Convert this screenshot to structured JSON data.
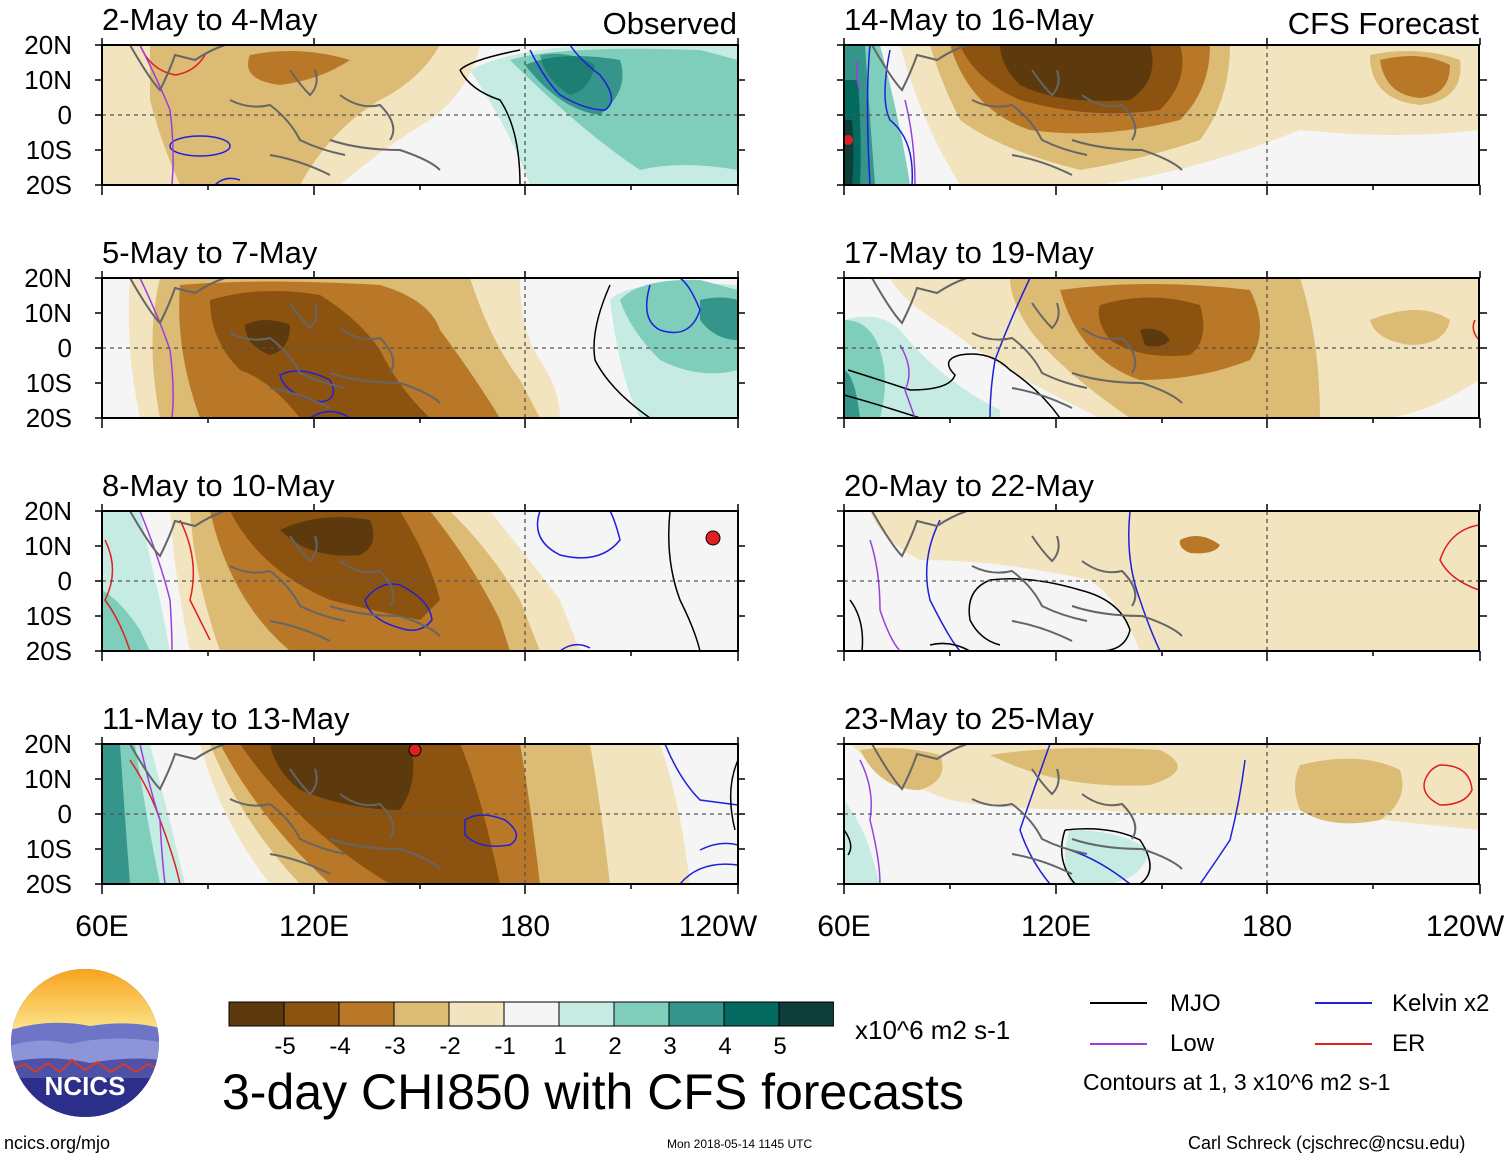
{
  "figure": {
    "title": "3-day CHI850 with CFS forecasts",
    "units_label": "x10^6 m2 s-1",
    "source_url": "ncics.org/mjo",
    "timestamp": "Mon 2018-05-14 1145 UTC",
    "credit": "Carl Schreck (cjschrec@ncsu.edu)",
    "logo_text": "NCICS"
  },
  "columns": {
    "left_tag": "Observed",
    "right_tag": "CFS Forecast"
  },
  "axes": {
    "lat_labels": [
      "20N",
      "10N",
      "0",
      "10S",
      "20S"
    ],
    "lon_labels": [
      "60E",
      "120E",
      "180",
      "120W"
    ]
  },
  "colorbar": {
    "colors": [
      "#5c3a0e",
      "#8c520f",
      "#b87828",
      "#dcbb74",
      "#f3e4c0",
      "#f5f5f5",
      "#c5ebe3",
      "#7fcdbb",
      "#36958a",
      "#04695e",
      "#0e3e37"
    ],
    "tick_labels": [
      "-5",
      "-4",
      "-3",
      "-2",
      "-1",
      "1",
      "2",
      "3",
      "4",
      "5"
    ]
  },
  "legend": {
    "items": [
      {
        "label": "MJO",
        "color": "#000000"
      },
      {
        "label": "Kelvin x2",
        "color": "#1f1fdc"
      },
      {
        "label": "Low",
        "color": "#9b3ee0"
      },
      {
        "label": "ER",
        "color": "#e01f1f"
      }
    ],
    "contour_note": "Contours at 1, 3 x10^6 m2 s-1"
  },
  "chart_data": {
    "type": "heatmap",
    "variable": "CHI850 anomaly",
    "units": "x10^6 m2 s-1",
    "x_axis": {
      "range": [
        "60E",
        "120W"
      ],
      "ticks": [
        "60E",
        "120E",
        "180",
        "120W"
      ]
    },
    "y_axis": {
      "range": [
        "20S",
        "20N"
      ],
      "ticks": [
        "20N",
        "10N",
        "0",
        "10S",
        "20S"
      ]
    },
    "color_levels": [
      -5,
      -4,
      -3,
      -2,
      -1,
      1,
      2,
      3,
      4,
      5
    ],
    "panels": [
      {
        "title": "2-May to 4-May",
        "type": "Observed"
      },
      {
        "title": "5-May to 7-May",
        "type": "Observed"
      },
      {
        "title": "8-May to 10-May",
        "type": "Observed"
      },
      {
        "title": "11-May to 13-May",
        "type": "Observed"
      },
      {
        "title": "14-May to 16-May",
        "type": "CFS Forecast"
      },
      {
        "title": "17-May to 19-May",
        "type": "CFS Forecast"
      },
      {
        "title": "20-May to 22-May",
        "type": "CFS Forecast"
      },
      {
        "title": "23-May to 25-May",
        "type": "CFS Forecast"
      }
    ]
  }
}
